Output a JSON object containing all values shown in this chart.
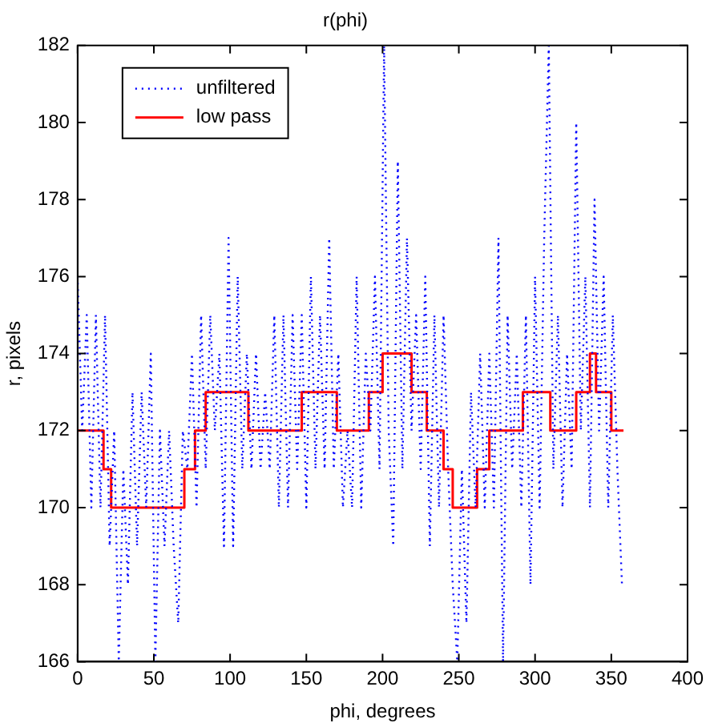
{
  "chart_data": {
    "type": "line",
    "title": "r(phi)",
    "xlabel": "phi, degrees",
    "ylabel": "r, pixels",
    "xlim": [
      0,
      400
    ],
    "xticks": [
      0,
      50,
      100,
      150,
      200,
      250,
      300,
      350,
      400
    ],
    "ylim": [
      166,
      182
    ],
    "yticks": [
      166,
      168,
      170,
      172,
      174,
      176,
      178,
      180,
      182
    ],
    "legend": "top left",
    "marker": "none",
    "series": [
      {
        "name": "unfiltered",
        "line_style": "dotted",
        "color": "#0000ff",
        "x": [
          0,
          3,
          6,
          9,
          12,
          15,
          18,
          21,
          24,
          27,
          30,
          33,
          36,
          39,
          42,
          45,
          48,
          51,
          54,
          57,
          60,
          63,
          66,
          69,
          72,
          75,
          78,
          81,
          84,
          87,
          90,
          93,
          96,
          99,
          102,
          105,
          108,
          111,
          114,
          117,
          120,
          123,
          126,
          129,
          132,
          135,
          138,
          141,
          144,
          147,
          150,
          153,
          156,
          159,
          162,
          165,
          168,
          171,
          174,
          177,
          180,
          183,
          186,
          189,
          192,
          195,
          198,
          201,
          204,
          207,
          210,
          213,
          216,
          219,
          222,
          225,
          228,
          231,
          234,
          237,
          240,
          243,
          246,
          249,
          252,
          255,
          258,
          261,
          264,
          267,
          270,
          273,
          276,
          279,
          282,
          285,
          288,
          291,
          294,
          297,
          300,
          303,
          306,
          309,
          312,
          315,
          318,
          321,
          324,
          327,
          330,
          333,
          336,
          339,
          342,
          345,
          348,
          351,
          354,
          357
        ],
        "values": [
          176,
          172,
          175,
          170,
          175,
          170,
          175,
          169,
          172,
          166,
          171,
          168,
          173,
          169,
          173,
          170,
          174,
          166,
          172,
          169,
          172,
          169,
          167,
          172,
          171,
          174,
          170,
          175,
          171,
          175,
          172,
          174,
          169,
          177,
          169,
          176,
          171,
          174,
          171,
          174,
          171,
          173,
          171,
          175,
          170,
          175,
          170,
          175,
          171,
          175,
          170,
          176,
          171,
          175,
          171,
          177,
          171,
          174,
          170,
          172,
          170,
          176,
          170,
          174,
          172,
          176,
          171,
          182,
          172,
          169,
          179,
          171,
          177,
          172,
          175,
          171,
          176,
          169,
          175,
          170,
          175,
          171,
          168,
          166,
          171,
          167,
          173,
          170,
          174,
          170,
          174,
          170,
          177,
          166,
          175,
          171,
          174,
          170,
          175,
          168,
          176,
          170,
          177,
          182,
          171,
          175,
          170,
          174,
          171,
          180,
          172,
          176,
          170,
          178,
          172,
          176,
          170,
          175,
          171,
          168
        ]
      },
      {
        "name": "low pass",
        "type": "step",
        "line_style": "solid",
        "color": "#ff0000",
        "x": [
          0,
          17,
          22,
          70,
          77,
          84,
          112,
          147,
          170,
          191,
          200,
          219,
          229,
          240,
          246,
          262,
          270,
          292,
          310,
          327,
          336,
          340,
          350,
          358
        ],
        "values": [
          172,
          171,
          170,
          171,
          172,
          173,
          172,
          173,
          172,
          173,
          174,
          173,
          172,
          171,
          170,
          171,
          172,
          173,
          172,
          173,
          174,
          173,
          172,
          172
        ]
      }
    ]
  }
}
